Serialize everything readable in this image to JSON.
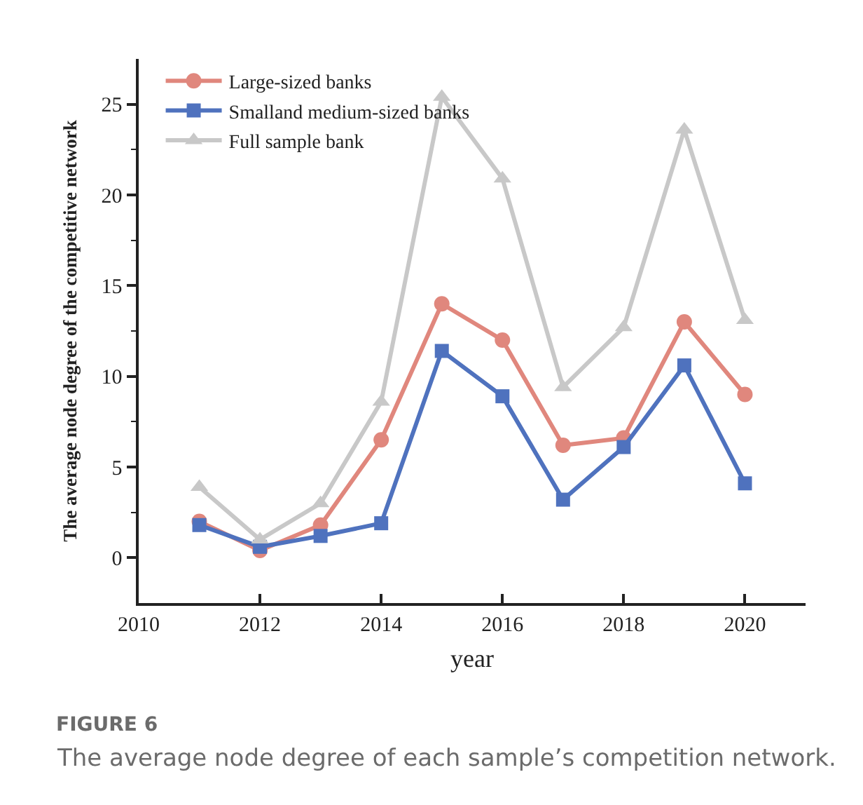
{
  "chart_data": {
    "type": "line",
    "x": [
      2011,
      2012,
      2013,
      2014,
      2015,
      2016,
      2017,
      2018,
      2019,
      2020
    ],
    "series": [
      {
        "name": "Large-sized banks",
        "color": "#e0877d",
        "marker": "circle",
        "values": [
          2.0,
          0.4,
          1.8,
          6.5,
          14.0,
          12.0,
          6.2,
          6.6,
          13.0,
          9.0
        ]
      },
      {
        "name": "Smalland medium-sized banks",
        "color": "#4f72be",
        "marker": "square",
        "values": [
          1.8,
          0.6,
          1.2,
          1.9,
          11.4,
          8.9,
          3.2,
          6.1,
          10.6,
          4.1
        ]
      },
      {
        "name": "Full sample bank",
        "color": "#c8c8c8",
        "marker": "triangle",
        "values": [
          3.9,
          1.0,
          3.0,
          8.6,
          25.4,
          20.9,
          9.4,
          12.7,
          23.6,
          13.1
        ]
      }
    ],
    "xlabel": "year",
    "ylabel": "The average node degree of the competitive network",
    "xlim": [
      2010,
      2021
    ],
    "xticks": [
      2010,
      2012,
      2014,
      2016,
      2018,
      2020
    ],
    "ylim": [
      -2.5,
      27.5
    ],
    "yticks": [
      0,
      {
        "value": 2.5,
        "label": null
      },
      5,
      {
        "value": 7.5,
        "label": null
      },
      10,
      {
        "value": 12.5,
        "label": null
      },
      15,
      {
        "value": 17.5,
        "label": null
      },
      20,
      {
        "value": 22.5,
        "label": null
      },
      25
    ],
    "grid": false,
    "legend": "top left",
    "line_style": "solid",
    "annotations": [
      "FIGURE 6",
      "The average node degree of each sample’s competition network."
    ]
  }
}
